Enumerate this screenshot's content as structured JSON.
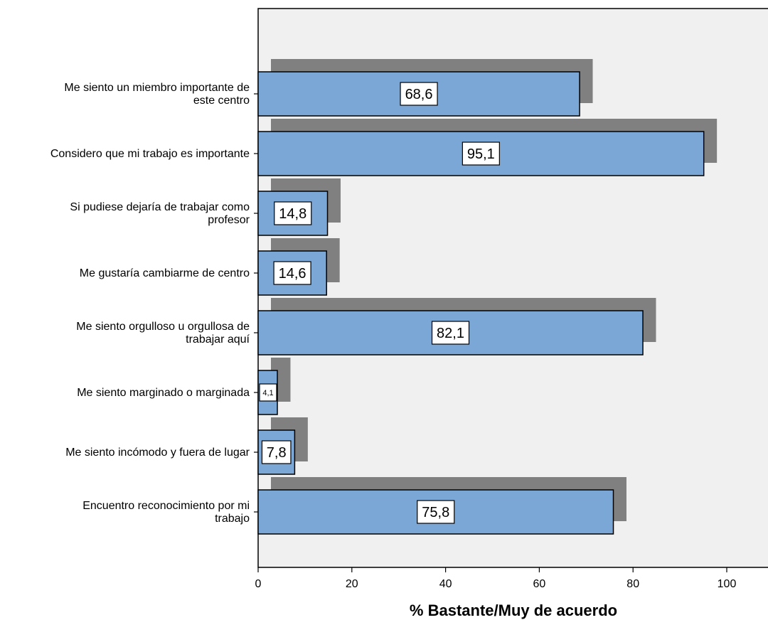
{
  "chart_data": {
    "type": "bar",
    "orientation": "horizontal",
    "categories": [
      [
        "Me siento un miembro importante de",
        "este centro"
      ],
      [
        "Considero que mi trabajo es importante"
      ],
      [
        "Si pudiese dejaría de trabajar como",
        "profesor"
      ],
      [
        "Me gustaría cambiarme de centro"
      ],
      [
        "Me siento orgulloso u orgullosa de",
        "trabajar aquí"
      ],
      [
        "Me siento marginado o marginada"
      ],
      [
        "Me siento incómodo y fuera de lugar"
      ],
      [
        "Encuentro reconocimiento por mi",
        "trabajo"
      ]
    ],
    "values": [
      68.6,
      95.1,
      14.8,
      14.6,
      82.1,
      4.1,
      7.8,
      75.8
    ],
    "value_labels": [
      "68,6",
      "95,1",
      "14,8",
      "14,6",
      "82,1",
      "4,1",
      "7,8",
      "75,8"
    ],
    "title": "",
    "xlabel": "% Bastante/Muy de acuerdo",
    "ylabel": "",
    "xlim": [
      0,
      100
    ],
    "xticks": [
      0,
      20,
      40,
      60,
      80,
      100
    ],
    "xtick_labels": [
      "0",
      "20",
      "40",
      "60",
      "80",
      "100"
    ],
    "grid": false,
    "legend": "none",
    "colors": {
      "bar": "#7BA7D6",
      "shadow": "#808080",
      "plot_bg": "#F0F0F0",
      "border": "#000000"
    }
  }
}
